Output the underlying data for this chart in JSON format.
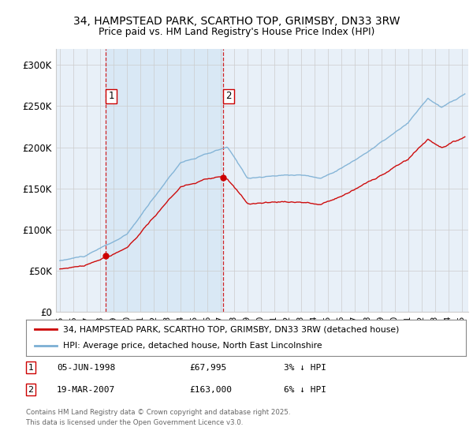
{
  "title_line1": "34, HAMPSTEAD PARK, SCARTHO TOP, GRIMSBY, DN33 3RW",
  "title_line2": "Price paid vs. HM Land Registry's House Price Index (HPI)",
  "ylabel_ticks": [
    "£0",
    "£50K",
    "£100K",
    "£150K",
    "£200K",
    "£250K",
    "£300K"
  ],
  "ytick_vals": [
    0,
    50000,
    100000,
    150000,
    200000,
    250000,
    300000
  ],
  "ylim": [
    0,
    320000
  ],
  "xlim_start": 1994.7,
  "xlim_end": 2025.5,
  "sale1_date": 1998.43,
  "sale1_price": 67995,
  "sale1_label": "1",
  "sale2_date": 2007.21,
  "sale2_price": 163000,
  "sale2_label": "2",
  "legend_line1": "34, HAMPSTEAD PARK, SCARTHO TOP, GRIMSBY, DN33 3RW (detached house)",
  "legend_line2": "HPI: Average price, detached house, North East Lincolnshire",
  "footer": "Contains HM Land Registry data © Crown copyright and database right 2025.\nThis data is licensed under the Open Government Licence v3.0.",
  "property_color": "#cc0000",
  "hpi_color": "#7bafd4",
  "vline_color": "#cc0000",
  "shade_color": "#d8e8f5",
  "background_color": "#e8f0f8",
  "plot_bg_color": "#ffffff",
  "grid_color": "#cccccc",
  "xtick_years": [
    1995,
    1996,
    1997,
    1998,
    1999,
    2000,
    2001,
    2002,
    2003,
    2004,
    2005,
    2006,
    2007,
    2008,
    2009,
    2010,
    2011,
    2012,
    2013,
    2014,
    2015,
    2016,
    2017,
    2018,
    2019,
    2020,
    2021,
    2022,
    2023,
    2024,
    2025
  ]
}
